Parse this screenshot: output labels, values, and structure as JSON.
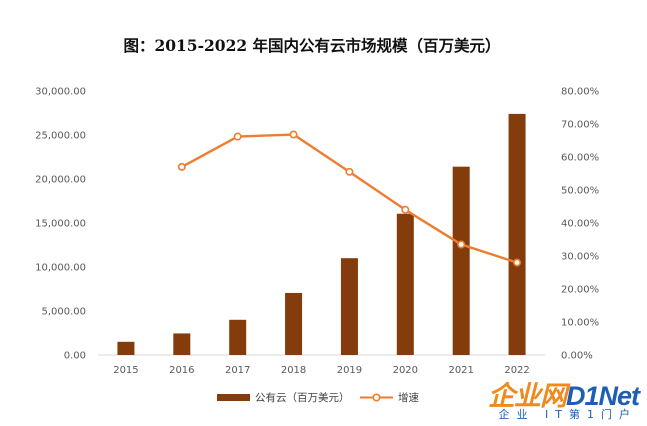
{
  "chart_data": {
    "type": "bar+line",
    "title": "图：2015-2022 年国内公有云市场规模（百万美元）",
    "categories": [
      "2015",
      "2016",
      "2017",
      "2018",
      "2019",
      "2020",
      "2021",
      "2022"
    ],
    "series": [
      {
        "name": "公有云（百万美元）",
        "type": "bar",
        "axis": "left",
        "color": "#843c0c",
        "values": [
          1500,
          2450,
          4000,
          7050,
          11000,
          16050,
          21400,
          27400
        ]
      },
      {
        "name": "增速",
        "type": "line",
        "axis": "right",
        "color": "#ed7d31",
        "values": [
          null,
          57.0,
          66.2,
          66.8,
          55.5,
          44.0,
          33.5,
          28.0
        ]
      }
    ],
    "y_left": {
      "min": 0,
      "max": 30000,
      "ticks": [
        "0.00",
        "5,000.00",
        "10,000.00",
        "15,000.00",
        "20,000.00",
        "25,000.00",
        "30,000.00"
      ]
    },
    "y_right": {
      "min": 0,
      "max": 80,
      "ticks": [
        "0.00%",
        "10.00%",
        "20.00%",
        "30.00%",
        "40.00%",
        "50.00%",
        "60.00%",
        "70.00%",
        "80.00%"
      ]
    },
    "grid": false,
    "legend_position": "bottom"
  },
  "watermark": {
    "logo_cn": "企业网",
    "logo_d1": "D1Net",
    "subtitle": "企业 IT第1门户"
  }
}
